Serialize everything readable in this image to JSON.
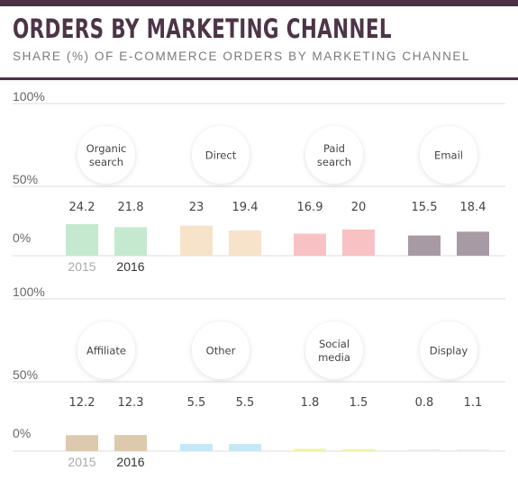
{
  "title": "ORDERS BY MARKETING CHANNEL",
  "subtitle": "SHARE (%) OF E-COMMERCE ORDERS BY MARKETING CHANNEL",
  "chart_data": {
    "type": "bar",
    "ylim": [
      0,
      100
    ],
    "y_ticks": [
      "100%",
      "50%",
      "0%"
    ],
    "years": [
      "2015",
      "2016"
    ],
    "grid": true,
    "panels": [
      {
        "categories": [
          "Organic\nsearch",
          "Direct",
          "Paid\nsearch",
          "Email"
        ],
        "series": [
          {
            "name": "2015",
            "values": [
              24.2,
              23,
              16.9,
              15.5
            ]
          },
          {
            "name": "2016",
            "values": [
              21.8,
              19.4,
              20,
              18.4
            ]
          }
        ],
        "value_labels": [
          [
            "24.2",
            "21.8"
          ],
          [
            "23",
            "19.4"
          ],
          [
            "16.9",
            "20"
          ],
          [
            "15.5",
            "18.4"
          ]
        ],
        "colors": [
          "#c4e9cf",
          "#f6e3c9",
          "#f8c2c4",
          "#a89aa4"
        ]
      },
      {
        "categories": [
          "Affiliate",
          "Other",
          "Social\nmedia",
          "Display"
        ],
        "series": [
          {
            "name": "2015",
            "values": [
              12.2,
              5.5,
              1.8,
              0.8
            ]
          },
          {
            "name": "2016",
            "values": [
              12.3,
              5.5,
              1.5,
              1.1
            ]
          }
        ],
        "value_labels": [
          [
            "12.2",
            "12.3"
          ],
          [
            "5.5",
            "5.5"
          ],
          [
            "1.8",
            "1.5"
          ],
          [
            "0.8",
            "1.1"
          ]
        ],
        "colors": [
          "#ddc9ad",
          "#c7e7f7",
          "#f2f2a6",
          "#ececec"
        ]
      }
    ],
    "year_label_colors": [
      "#aaaaaa",
      "#333333"
    ]
  }
}
